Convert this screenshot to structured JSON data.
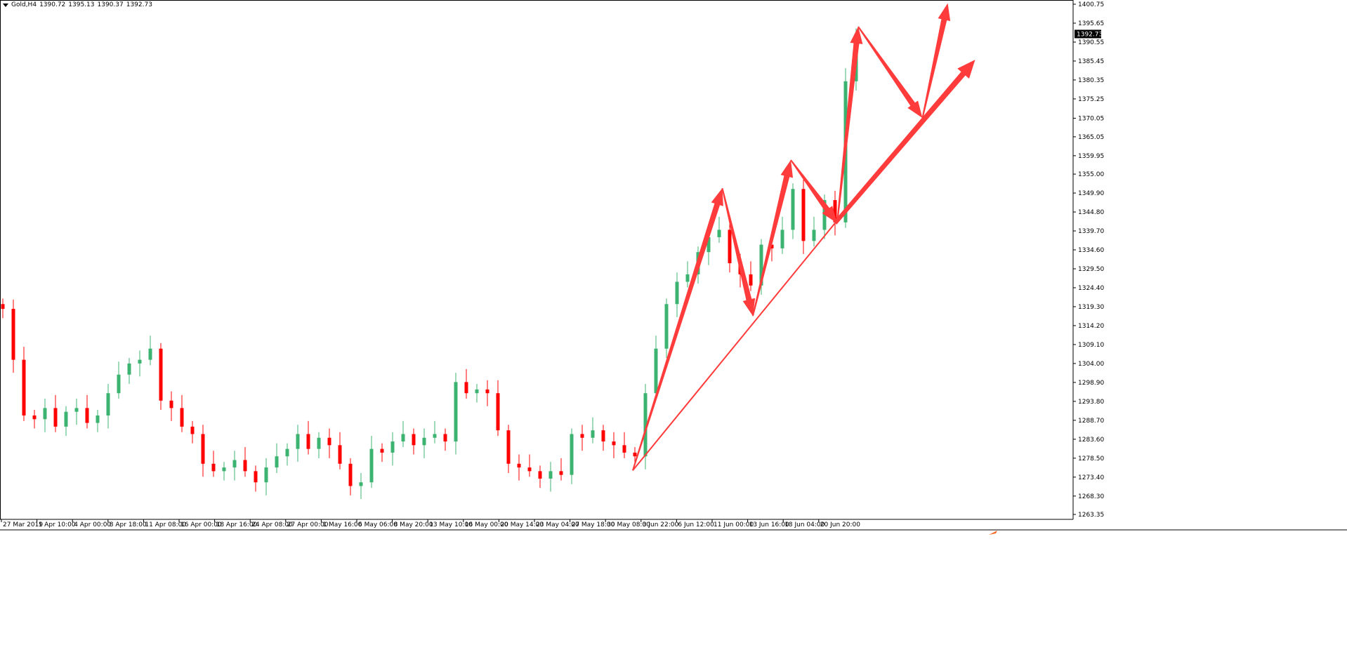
{
  "header": {
    "symbol": "Gold,H4",
    "open": "1390.72",
    "high": "1395.13",
    "low": "1390.37",
    "close": "1392.73"
  },
  "colors": {
    "bull": "#3cb371",
    "bear": "#ff0000",
    "annotation": "#ff3b3b",
    "axis": "#000000"
  },
  "chart_data": {
    "type": "candlestick",
    "title": "Gold,H4",
    "ylim": [
      1263.35,
      1400.75
    ],
    "grid": false,
    "last_price": "1392.73",
    "y_ticks": [
      "1400.75",
      "1395.65",
      "1390.55",
      "1385.45",
      "1380.35",
      "1375.25",
      "1370.05",
      "1365.05",
      "1359.95",
      "1355.00",
      "1349.90",
      "1344.80",
      "1339.70",
      "1334.60",
      "1329.50",
      "1324.40",
      "1319.30",
      "1314.20",
      "1309.10",
      "1304.00",
      "1298.90",
      "1293.80",
      "1288.70",
      "1283.60",
      "1278.50",
      "1273.40",
      "1268.30",
      "1263.35"
    ],
    "x_ticks": [
      "27 Mar 2019",
      "1 Apr 10:00",
      "4 Apr 00:00",
      "8 Apr 18:00",
      "11 Apr 08:00",
      "16 Apr 00:00",
      "18 Apr 16:00",
      "24 Apr 08:00",
      "27 Apr 00:00",
      "1 May 16:00",
      "6 May 06:00",
      "8 May 20:00",
      "13 May 10:00",
      "16 May 00:00",
      "20 May 14:00",
      "23 May 04:00",
      "27 May 18:00",
      "30 May 08:00",
      "3 Jun 22:00",
      "6 Jun 12:00",
      "11 Jun 00:00",
      "13 Jun 16:00",
      "18 Jun 04:00",
      "20 Jun 20:00"
    ],
    "closes": [
      1318.7,
      1305,
      1290,
      1289,
      1292,
      1287,
      1291,
      1292,
      1288,
      1290,
      1296,
      1301,
      1304,
      1305,
      1308,
      1294,
      1292,
      1287,
      1285,
      1277,
      1275,
      1276,
      1278,
      1275,
      1272,
      1276,
      1279,
      1281,
      1285,
      1281,
      1284,
      1282,
      1277,
      1271,
      1272,
      1281,
      1280,
      1283,
      1285,
      1282,
      1284,
      1285,
      1283,
      1299,
      1296,
      1297,
      1296,
      1286,
      1277,
      1276,
      1275,
      1273,
      1275,
      1274,
      1285,
      1284,
      1286,
      1283,
      1282,
      1280,
      1279,
      1296,
      1308,
      1320,
      1326,
      1328,
      1334,
      1338,
      1340,
      1331,
      1328,
      1325,
      1336,
      1335,
      1340,
      1351,
      1337,
      1340,
      1348,
      1342,
      1380,
      1392.73
    ],
    "first_open": 1320,
    "annotations": [
      {
        "type": "arrow",
        "from": [
          59.8,
          1275.2
        ],
        "to": [
          68.3,
          1351.2
        ]
      },
      {
        "type": "arrow",
        "from": [
          68.3,
          1351.2
        ],
        "to": [
          71.2,
          1316.8
        ]
      },
      {
        "type": "arrow",
        "from": [
          71.2,
          1316.8
        ],
        "to": [
          74.8,
          1358.8
        ]
      },
      {
        "type": "arrow",
        "from": [
          74.8,
          1358.8
        ],
        "to": [
          79.2,
          1341.8
        ]
      },
      {
        "type": "arrow",
        "from": [
          79.2,
          1341.8
        ],
        "to": [
          81.2,
          1394.7
        ]
      },
      {
        "type": "arrow",
        "from": [
          81.2,
          1394.7
        ],
        "to": [
          87.3,
          1370.1
        ]
      },
      {
        "type": "arrow",
        "from": [
          87.3,
          1370.1
        ],
        "to": [
          89.7,
          1401.0
        ]
      },
      {
        "type": "trendline",
        "from": [
          59.8,
          1275.2
        ],
        "to": [
          79.0,
          1341.8
        ]
      },
      {
        "type": "arrow-thick",
        "from": [
          79.0,
          1341.8
        ],
        "to": [
          92.3,
          1385.8
        ]
      }
    ]
  }
}
